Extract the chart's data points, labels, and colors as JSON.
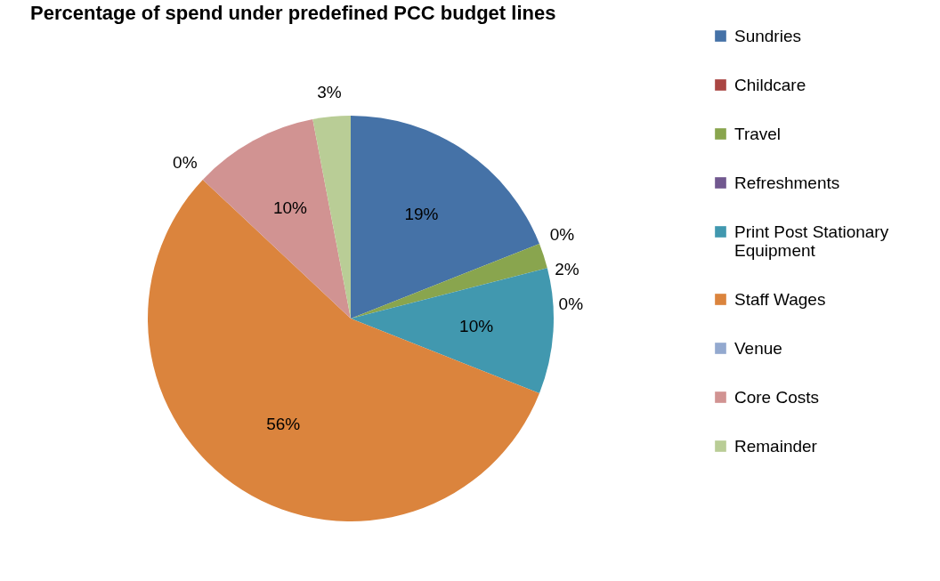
{
  "chart_data": {
    "type": "pie",
    "title": "Percentage of spend under predefined PCC budget lines",
    "categories": [
      "Sundries",
      "Childcare",
      "Travel",
      "Refreshments",
      "Print Post Stationary Equipment",
      "Staff Wages",
      "Venue",
      "Core Costs",
      "Remainder"
    ],
    "values": [
      19,
      0,
      2,
      0,
      10,
      56,
      0,
      10,
      3
    ],
    "colors": [
      "#4572a7",
      "#aa4643",
      "#89a54e",
      "#71588f",
      "#4198af",
      "#db843d",
      "#93a9cf",
      "#d19392",
      "#b9cd96"
    ],
    "value_labels": [
      "19%",
      "0%",
      "2%",
      "0%",
      "10%",
      "56%",
      "0%",
      "10%",
      "3%"
    ],
    "legend": "right"
  }
}
